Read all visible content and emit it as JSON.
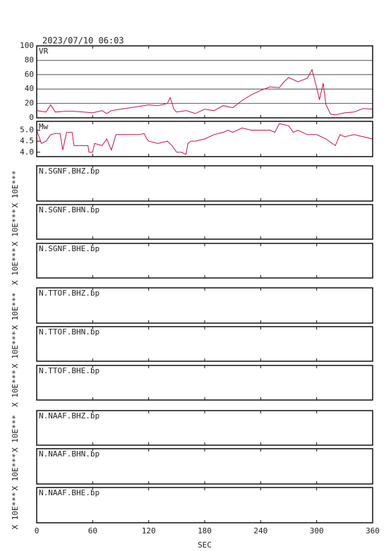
{
  "title": "2023/07/10 06:03",
  "x_axis": {
    "xlim": [
      0,
      360
    ],
    "xticks": [
      0,
      60,
      120,
      180,
      240,
      300,
      360
    ],
    "xlabel": "SEC"
  },
  "chart_data": [
    {
      "type": "line",
      "ylabel": "VR",
      "xlim": [
        0,
        360
      ],
      "ylim": [
        0,
        100
      ],
      "yticks": [
        0,
        20,
        40,
        60,
        80,
        100
      ],
      "grid": true,
      "x": [
        0,
        10,
        15,
        20,
        30,
        40,
        50,
        60,
        70,
        75,
        80,
        90,
        100,
        110,
        120,
        130,
        140,
        143,
        147,
        150,
        160,
        170,
        180,
        190,
        200,
        210,
        220,
        230,
        240,
        250,
        260,
        265,
        270,
        280,
        290,
        295,
        300,
        303,
        307,
        310,
        315,
        320,
        330,
        340,
        350,
        360
      ],
      "series": [
        {
          "color": "#d01040",
          "values": [
            10,
            8,
            18,
            8,
            9,
            9,
            8,
            7,
            10,
            6,
            10,
            12,
            14,
            16,
            18,
            17,
            20,
            28,
            12,
            8,
            10,
            6,
            12,
            10,
            17,
            14,
            24,
            32,
            38,
            43,
            42,
            50,
            56,
            50,
            55,
            67,
            42,
            25,
            48,
            18,
            5,
            4,
            7,
            8,
            13,
            12
          ]
        }
      ]
    },
    {
      "type": "line",
      "ylabel": "Mw",
      "xlim": [
        0,
        360
      ],
      "ylim": [
        3.8,
        5.4
      ],
      "yticks": [
        {
          "value": 4,
          "label": "4.0"
        },
        4.5,
        {
          "value": 5,
          "label": "5.0"
        }
      ],
      "grid": false,
      "x": [
        0,
        5,
        10,
        15,
        20,
        25,
        28,
        32,
        38,
        40,
        55,
        56,
        60,
        62,
        70,
        75,
        80,
        85,
        95,
        100,
        110,
        115,
        118,
        120,
        130,
        140,
        145,
        150,
        155,
        160,
        162,
        165,
        170,
        180,
        190,
        200,
        205,
        210,
        220,
        230,
        240,
        250,
        255,
        260,
        270,
        275,
        280,
        290,
        300,
        310,
        320,
        325,
        330,
        340,
        350,
        360
      ],
      "series": [
        {
          "color": "#d01040",
          "values": [
            5.0,
            4.4,
            4.5,
            4.8,
            4.85,
            4.85,
            4.1,
            4.9,
            4.9,
            4.3,
            4.3,
            4.0,
            4.0,
            4.4,
            4.3,
            4.6,
            4.1,
            4.8,
            4.8,
            4.8,
            4.8,
            4.85,
            4.6,
            4.5,
            4.4,
            4.5,
            4.3,
            4.0,
            4.0,
            3.9,
            4.4,
            4.5,
            4.5,
            4.6,
            4.8,
            4.9,
            5.0,
            4.9,
            5.1,
            5.0,
            5.0,
            5.0,
            4.9,
            5.3,
            5.2,
            4.9,
            5.0,
            4.8,
            4.8,
            4.6,
            4.3,
            4.8,
            4.7,
            4.8,
            4.7,
            4.6
          ]
        }
      ]
    }
  ],
  "traces": [
    {
      "station": "N.SGNF.BHZ.bp",
      "unit": "X 10E***"
    },
    {
      "station": "N.SGNF.BHN.bp",
      "unit": "X 10E***"
    },
    {
      "station": "N.SGNF.BHE.bp",
      "unit": "X 10E***"
    },
    {
      "station": "N.TTOF.BHZ.bp",
      "unit": "X 10E***"
    },
    {
      "station": "N.TTOF.BHN.bp",
      "unit": "X 10E***"
    },
    {
      "station": "N.TTOF.BHE.bp",
      "unit": "X 10E***"
    },
    {
      "station": "N.NAAF.BHZ.bp",
      "unit": "X 10E***"
    },
    {
      "station": "N.NAAF.BHN.bp",
      "unit": "X 10E***"
    },
    {
      "station": "N.NAAF.BHE.bp",
      "unit": "X 10E***"
    }
  ]
}
